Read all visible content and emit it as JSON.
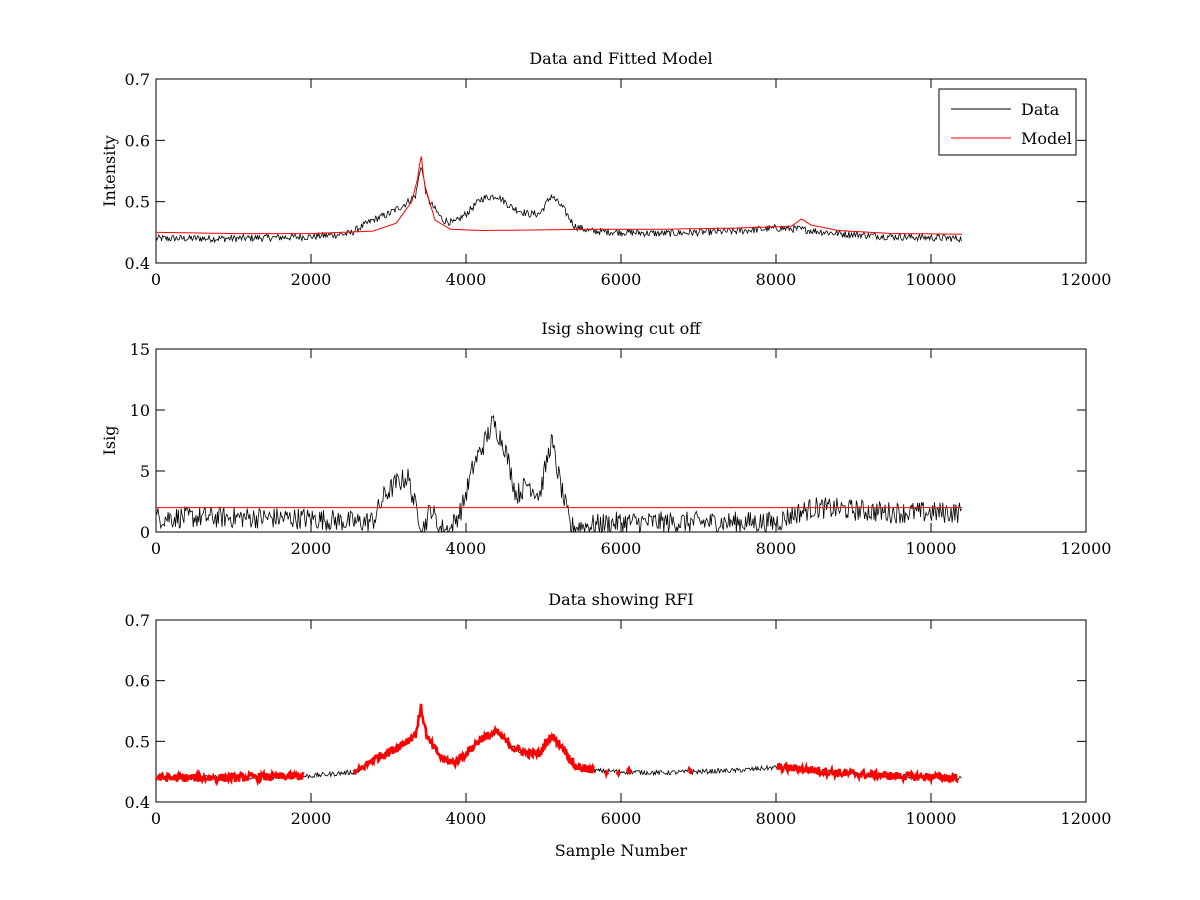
{
  "chart_data": [
    {
      "type": "line",
      "title": "Data and Fitted Model",
      "xlabel": "",
      "ylabel": "Intensity",
      "xlim": [
        0,
        12000
      ],
      "ylim": [
        0.4,
        0.7
      ],
      "xticks": [
        "0",
        "2000",
        "4000",
        "6000",
        "8000",
        "10000",
        "12000"
      ],
      "yticks": [
        "0.4",
        "0.5",
        "0.6",
        "0.7"
      ],
      "legend": [
        "Data",
        "Model"
      ],
      "legend_position": "top-right",
      "series": [
        {
          "name": "Data",
          "color": "#000000",
          "noise": 0.006,
          "points": [
            [
              0,
              0.44
            ],
            [
              1000,
              0.44
            ],
            [
              2000,
              0.443
            ],
            [
              2500,
              0.448
            ],
            [
              2800,
              0.47
            ],
            [
              3000,
              0.48
            ],
            [
              3200,
              0.495
            ],
            [
              3350,
              0.51
            ],
            [
              3420,
              0.56
            ],
            [
              3500,
              0.505
            ],
            [
              3700,
              0.47
            ],
            [
              3850,
              0.465
            ],
            [
              4000,
              0.48
            ],
            [
              4200,
              0.505
            ],
            [
              4400,
              0.51
            ],
            [
              4600,
              0.49
            ],
            [
              4800,
              0.48
            ],
            [
              4950,
              0.48
            ],
            [
              5100,
              0.51
            ],
            [
              5250,
              0.49
            ],
            [
              5400,
              0.46
            ],
            [
              5600,
              0.452
            ],
            [
              6500,
              0.448
            ],
            [
              7500,
              0.452
            ],
            [
              8000,
              0.457
            ],
            [
              8300,
              0.455
            ],
            [
              8800,
              0.448
            ],
            [
              9500,
              0.443
            ],
            [
              10400,
              0.44
            ]
          ]
        },
        {
          "name": "Model",
          "color": "#ff0000",
          "noise": 0,
          "points": [
            [
              0,
              0.45
            ],
            [
              1000,
              0.448
            ],
            [
              2000,
              0.448
            ],
            [
              2800,
              0.452
            ],
            [
              3100,
              0.465
            ],
            [
              3300,
              0.5
            ],
            [
              3380,
              0.54
            ],
            [
              3420,
              0.58
            ],
            [
              3460,
              0.53
            ],
            [
              3600,
              0.47
            ],
            [
              3800,
              0.455
            ],
            [
              4200,
              0.453
            ],
            [
              5000,
              0.454
            ],
            [
              5600,
              0.455
            ],
            [
              6500,
              0.455
            ],
            [
              7500,
              0.457
            ],
            [
              8200,
              0.46
            ],
            [
              8330,
              0.472
            ],
            [
              8450,
              0.462
            ],
            [
              8800,
              0.453
            ],
            [
              9500,
              0.448
            ],
            [
              10400,
              0.447
            ]
          ]
        }
      ]
    },
    {
      "type": "line",
      "title": "Isig showing cut off",
      "xlabel": "",
      "ylabel": "Isig",
      "xlim": [
        0,
        12000
      ],
      "ylim": [
        0,
        15
      ],
      "xticks": [
        "0",
        "2000",
        "4000",
        "6000",
        "8000",
        "10000",
        "12000"
      ],
      "yticks": [
        "0",
        "5",
        "10",
        "15"
      ],
      "series": [
        {
          "name": "Isig",
          "color": "#000000",
          "noise": 0.9,
          "points": [
            [
              0,
              1.2
            ],
            [
              1000,
              1.2
            ],
            [
              2000,
              1.1
            ],
            [
              2600,
              0.8
            ],
            [
              2800,
              0.9
            ],
            [
              2950,
              3.0
            ],
            [
              3100,
              4.0
            ],
            [
              3250,
              4.5
            ],
            [
              3350,
              2.0
            ],
            [
              3450,
              0.3
            ],
            [
              3550,
              2.0
            ],
            [
              3650,
              0.3
            ],
            [
              3800,
              0.2
            ],
            [
              3950,
              2.0
            ],
            [
              4100,
              5.5
            ],
            [
              4250,
              7.5
            ],
            [
              4350,
              9.0
            ],
            [
              4500,
              7.0
            ],
            [
              4650,
              3.0
            ],
            [
              4800,
              4.0
            ],
            [
              4950,
              3.0
            ],
            [
              5100,
              7.5
            ],
            [
              5250,
              3.0
            ],
            [
              5350,
              0.4
            ],
            [
              6000,
              0.8
            ],
            [
              7000,
              0.8
            ],
            [
              8000,
              0.8
            ],
            [
              8250,
              1.5
            ],
            [
              8500,
              2.0
            ],
            [
              9500,
              1.6
            ],
            [
              10400,
              1.6
            ]
          ]
        },
        {
          "name": "Cut off",
          "color": "#ff0000",
          "noise": 0,
          "points": [
            [
              0,
              2.0
            ],
            [
              10400,
              2.0
            ]
          ]
        }
      ]
    },
    {
      "type": "line",
      "title": "Data showing RFI",
      "xlabel": "Sample Number",
      "ylabel": "",
      "xlim": [
        0,
        12000
      ],
      "ylim": [
        0.4,
        0.7
      ],
      "xticks": [
        "0",
        "2000",
        "4000",
        "6000",
        "8000",
        "10000",
        "12000"
      ],
      "yticks": [
        "0.4",
        "0.5",
        "0.6",
        "0.7"
      ],
      "series": [
        {
          "name": "Data",
          "color": "#000000",
          "noise": 0.004,
          "points": [
            [
              0,
              0.44
            ],
            [
              1000,
              0.44
            ],
            [
              2000,
              0.443
            ],
            [
              2600,
              0.45
            ],
            [
              2800,
              0.47
            ],
            [
              3000,
              0.482
            ],
            [
              3200,
              0.497
            ],
            [
              3350,
              0.512
            ],
            [
              3420,
              0.555
            ],
            [
              3500,
              0.505
            ],
            [
              3700,
              0.47
            ],
            [
              3850,
              0.465
            ],
            [
              4000,
              0.48
            ],
            [
              4200,
              0.505
            ],
            [
              4400,
              0.515
            ],
            [
              4600,
              0.49
            ],
            [
              4800,
              0.48
            ],
            [
              4950,
              0.48
            ],
            [
              5100,
              0.51
            ],
            [
              5250,
              0.49
            ],
            [
              5400,
              0.46
            ],
            [
              5600,
              0.452
            ],
            [
              6500,
              0.448
            ],
            [
              7500,
              0.452
            ],
            [
              8000,
              0.457
            ],
            [
              8300,
              0.455
            ],
            [
              8800,
              0.448
            ],
            [
              9500,
              0.443
            ],
            [
              10400,
              0.44
            ]
          ]
        },
        {
          "name": "RFI",
          "color": "#ff0000",
          "noise": 0.007,
          "segments": [
            [
              0,
              1900
            ],
            [
              2550,
              5650
            ],
            [
              5800,
              5830
            ],
            [
              5950,
              5990
            ],
            [
              6080,
              6120
            ],
            [
              6870,
              6920
            ],
            [
              8020,
              10350
            ]
          ]
        }
      ]
    }
  ]
}
